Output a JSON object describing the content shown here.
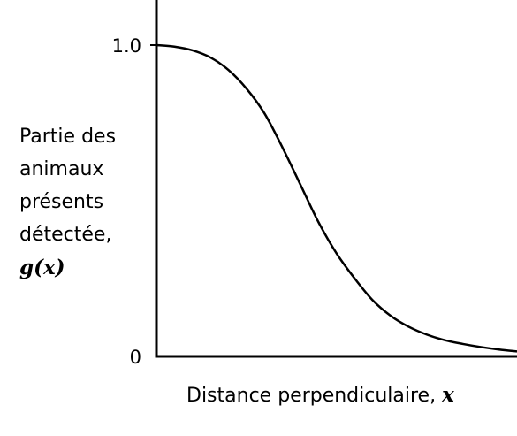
{
  "chart_data": {
    "type": "line",
    "title": "",
    "xlabel": "Distance perpendiculaire,",
    "xlabel_var": "x",
    "ylabel_lines": [
      "Partie des",
      "animaux",
      "présents",
      "détectée,"
    ],
    "ylabel_var": "g(x)",
    "yticks": [
      {
        "value": 0,
        "label": "0"
      },
      {
        "value": 1,
        "label": "1.0"
      }
    ],
    "xlim": [
      0,
      1
    ],
    "ylim": [
      0,
      1.15
    ],
    "grid": false,
    "legend": "none",
    "line_color": "#000000",
    "series": [
      {
        "x": [
          0,
          0.05,
          0.1,
          0.15,
          0.2,
          0.25,
          0.3,
          0.35,
          0.4,
          0.45,
          0.5,
          0.55,
          0.6,
          0.65,
          0.7,
          0.75,
          0.8,
          0.85,
          0.9,
          0.95,
          1.0
        ],
        "y": [
          1.0,
          0.995,
          0.983,
          0.96,
          0.92,
          0.86,
          0.78,
          0.67,
          0.55,
          0.43,
          0.33,
          0.25,
          0.18,
          0.13,
          0.095,
          0.07,
          0.052,
          0.04,
          0.03,
          0.022,
          0.016
        ]
      }
    ]
  }
}
